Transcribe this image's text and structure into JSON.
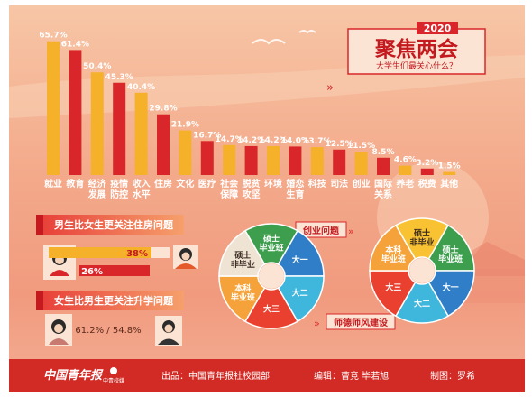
{
  "chart_data": {
    "type": "bar",
    "categories": [
      {
        "label": "就业",
        "value": 65.7,
        "value_label": "65.7%"
      },
      {
        "label": "教育",
        "value": 61.4,
        "value_label": "61.4%"
      },
      {
        "label": "经济发展",
        "value": 50.4,
        "value_label": "50.4%"
      },
      {
        "label": "疫情防控",
        "value": 45.3,
        "value_label": "45.3%"
      },
      {
        "label": "收入水平",
        "value": 40.4,
        "value_label": "40.4%"
      },
      {
        "label": "住房",
        "value": 29.8,
        "value_label": "29.8%"
      },
      {
        "label": "文化",
        "value": 21.9,
        "value_label": "21.9%"
      },
      {
        "label": "医疗",
        "value": 16.7,
        "value_label": "16.7%"
      },
      {
        "label": "社会保障",
        "value": 14.7,
        "value_label": "14.7%"
      },
      {
        "label": "脱贫攻坚",
        "value": 14.2,
        "value_label": "14.2%"
      },
      {
        "label": "环境",
        "value": 14.2,
        "value_label": "14.2%"
      },
      {
        "label": "婚恋生育",
        "value": 14.0,
        "value_label": "14.0%"
      },
      {
        "label": "科技",
        "value": 13.7,
        "value_label": "13.7%"
      },
      {
        "label": "司法",
        "value": 12.5,
        "value_label": "12.5%"
      },
      {
        "label": "创业",
        "value": 11.5,
        "value_label": "11.5%"
      },
      {
        "label": "国际关系",
        "value": 8.5,
        "value_label": "8.5%"
      },
      {
        "label": "养老",
        "value": 4.6,
        "value_label": "4.6%"
      },
      {
        "label": "税费",
        "value": 3.2,
        "value_label": "3.2%"
      },
      {
        "label": "其他",
        "value": 1.5,
        "value_label": "1.5%"
      }
    ],
    "ylim": [
      0,
      70
    ],
    "colors": {
      "bar_a": "#f5b129",
      "bar_b": "#d9262a"
    }
  },
  "header": {
    "year": "2020",
    "title": "聚焦两会",
    "subtitle": "大学生们最关心什么？"
  },
  "gender": {
    "panel1": {
      "title": "男生比女生更关注住房问题",
      "male_value": 38,
      "male_label": "38%",
      "female_value": 26,
      "female_label": "26%"
    },
    "panel2": {
      "title": "女生比男生更关注升学问题",
      "text": "61.2% / 54.8%"
    }
  },
  "wheels": {
    "left": {
      "title": "创业问题",
      "labels": [
        "硕士毕业班",
        "大一",
        "大二",
        "大三",
        "本科毕业班",
        "硕士非毕业"
      ],
      "colors": [
        "#3d9f4d",
        "#2f7ec7",
        "#3fb6dc",
        "#e9402f",
        "#f6a23a",
        "#efe3d4"
      ]
    },
    "right": {
      "title": "师德师风建设",
      "labels": [
        "硕士非毕业",
        "硕士毕业班",
        "大一",
        "大二",
        "大三",
        "本科毕业班"
      ],
      "colors": [
        "#f8c233",
        "#3d9f4d",
        "#2f7ec7",
        "#3fb6dc",
        "#e9402f",
        "#f6a23a"
      ]
    }
  },
  "footer": {
    "logo_text": "中国青年报",
    "logo_sub": "中青校媒",
    "source": "出品：中国青年报社校园部",
    "editors": "编辑：曹竞  毕若旭",
    "designer": "制图：罗希"
  }
}
